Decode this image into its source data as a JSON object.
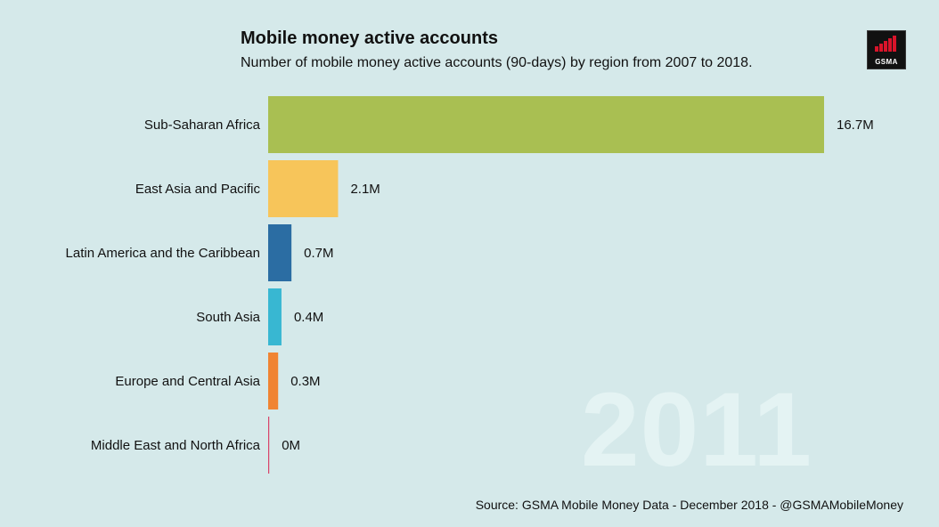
{
  "logo_text": "GSMA",
  "year": "2011",
  "source": "Source: GSMA Mobile Money Data - December 2018 - @GSMAMobileMoney",
  "chart_data": {
    "type": "bar",
    "orientation": "horizontal",
    "title": "Mobile money active accounts",
    "subtitle": "Number of mobile money active accounts (90-days) by region from 2007 to 2018.",
    "unit": "M",
    "categories": [
      "Sub-Saharan Africa",
      "East Asia and Pacific",
      "Latin America and the Caribbean",
      "South Asia",
      "Europe and Central Asia",
      "Middle East and North Africa"
    ],
    "values": [
      16.7,
      2.1,
      0.7,
      0.4,
      0.3,
      0
    ],
    "labels": [
      "16.7M",
      "2.1M",
      "0.7M",
      "0.4M",
      "0.3M",
      "0M"
    ],
    "colors": [
      "#a9bf52",
      "#f7c55a",
      "#2b6da3",
      "#38b7d2",
      "#f08432",
      "#d9436a"
    ],
    "grid": false,
    "legend": "none"
  }
}
